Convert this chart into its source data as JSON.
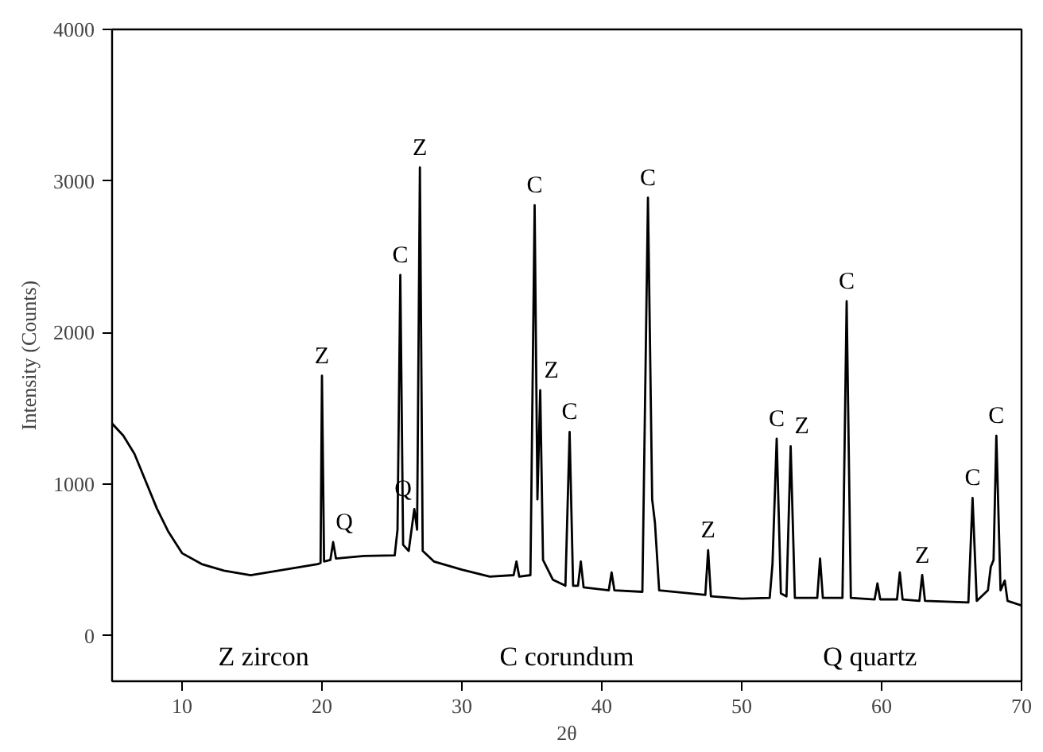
{
  "chart_data": {
    "type": "line",
    "xlabel": "2θ",
    "ylabel": "Intensity (Counts)",
    "xlim": [
      5,
      70
    ],
    "ylim": [
      -300,
      4000
    ],
    "xticks": [
      10,
      20,
      30,
      40,
      50,
      60,
      70
    ],
    "yticks": [
      0,
      1000,
      2000,
      3000,
      4000
    ],
    "grid": false,
    "marker": "none",
    "line_style": "solid",
    "x": [
      5,
      5.8,
      6.6,
      7.4,
      8.2,
      9,
      10,
      11.4,
      13,
      14.9,
      17.3,
      19.7,
      19.9,
      20.0,
      20.15,
      20.6,
      20.8,
      21.0,
      23,
      25.2,
      25.4,
      25.6,
      25.8,
      26.2,
      26.6,
      26.8,
      27.0,
      27.2,
      28,
      30,
      32,
      33.7,
      33.9,
      34.1,
      34.9,
      35.2,
      35.4,
      35.6,
      35.8,
      36.5,
      37.4,
      37.7,
      37.95,
      38.3,
      38.5,
      38.7,
      40.5,
      40.7,
      40.9,
      42.9,
      43.3,
      43.6,
      43.8,
      44.1,
      47.4,
      47.6,
      47.8,
      50,
      52.0,
      52.2,
      52.5,
      52.8,
      53.2,
      53.5,
      53.8,
      55.4,
      55.6,
      55.8,
      57.2,
      57.5,
      57.8,
      59.5,
      59.7,
      59.9,
      61.1,
      61.3,
      61.5,
      62.7,
      62.9,
      63.1,
      66.2,
      66.5,
      66.8,
      67.6,
      67.8,
      68.0,
      68.2,
      68.5,
      68.8,
      69.0,
      70
    ],
    "series": [
      {
        "color": "#000000",
        "values": [
          1400,
          1320,
          1200,
          1020,
          840,
          690,
          545,
          473,
          430,
          400,
          436,
          473,
          480,
          1716,
          490,
          500,
          618,
          510,
          527,
          530,
          700,
          2380,
          600,
          560,
          836,
          700,
          3090,
          560,
          490,
          436,
          390,
          400,
          490,
          390,
          400,
          2840,
          900,
          1620,
          500,
          370,
          330,
          1345,
          330,
          330,
          490,
          320,
          300,
          418,
          300,
          290,
          2890,
          900,
          745,
          300,
          270,
          564,
          260,
          245,
          250,
          473,
          1300,
          280,
          260,
          1250,
          250,
          250,
          509,
          250,
          250,
          2207,
          250,
          240,
          345,
          240,
          240,
          418,
          240,
          230,
          400,
          230,
          220,
          909,
          230,
          300,
          454,
          500,
          1320,
          300,
          364,
          230,
          200
        ]
      }
    ],
    "annotations": [
      {
        "text": "Z",
        "x": 20.0,
        "y": 1716
      },
      {
        "text": "Q",
        "x": 20.8,
        "y": 618
      },
      {
        "text": "C",
        "x": 25.6,
        "y": 2380
      },
      {
        "text": "Q",
        "x": 26.6,
        "y": 836
      },
      {
        "text": "Z",
        "x": 27.0,
        "y": 3090
      },
      {
        "text": "C",
        "x": 35.2,
        "y": 2840
      },
      {
        "text": "Z",
        "x": 35.6,
        "y": 1620
      },
      {
        "text": "C",
        "x": 37.7,
        "y": 1345
      },
      {
        "text": "C",
        "x": 43.3,
        "y": 2890
      },
      {
        "text": "Z",
        "x": 47.6,
        "y": 564
      },
      {
        "text": "C",
        "x": 52.5,
        "y": 1300
      },
      {
        "text": "Z",
        "x": 53.5,
        "y": 1250
      },
      {
        "text": "C",
        "x": 57.5,
        "y": 2207
      },
      {
        "text": "Z",
        "x": 62.9,
        "y": 400
      },
      {
        "text": "C",
        "x": 66.5,
        "y": 909
      },
      {
        "text": "C",
        "x": 68.2,
        "y": 1320
      },
      "Z zircon",
      "C corundum",
      "Q quartz"
    ]
  }
}
